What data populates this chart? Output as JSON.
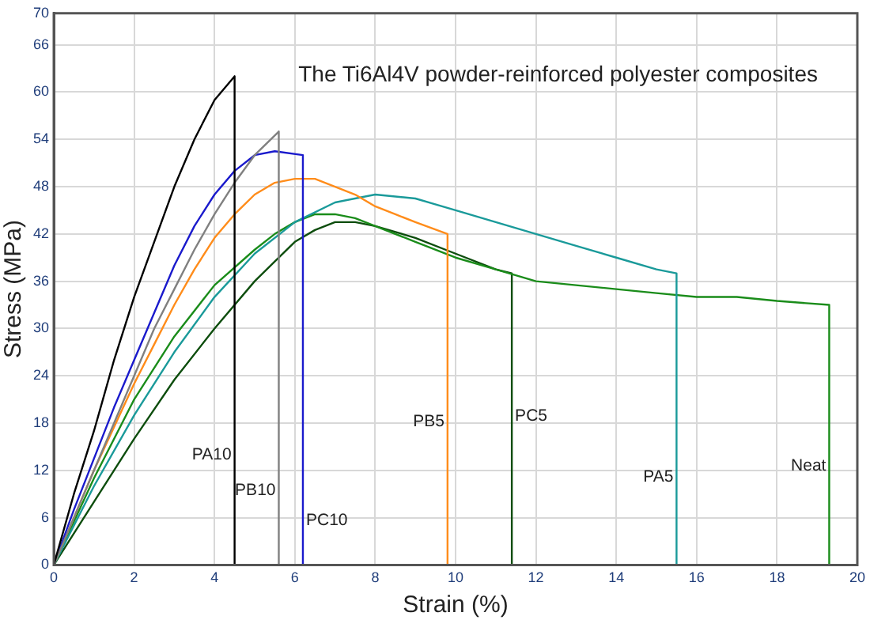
{
  "chart_data": {
    "type": "line",
    "title": "The Ti6Al4V powder-reinforced polyester composites",
    "xlabel": "Strain (%)",
    "ylabel": "Stress (MPa)",
    "xlim": [
      0,
      20
    ],
    "xticks": [
      0,
      2,
      4,
      6,
      8,
      10,
      12,
      14,
      16,
      18,
      20
    ],
    "ylim": [
      0,
      70
    ],
    "yticks": [
      0,
      6,
      12,
      18,
      24,
      30,
      36,
      42,
      48,
      54,
      60,
      66,
      70
    ],
    "grid": true,
    "marker": "none",
    "line_style": "solid",
    "series": [
      {
        "name": "PA10",
        "color": "#000000",
        "x": [
          0,
          0.5,
          1,
          1.5,
          2,
          2.5,
          3,
          3.5,
          4,
          4.5,
          4.5
        ],
        "values": [
          0,
          9,
          17,
          26,
          34,
          41,
          48,
          54,
          59,
          62,
          0
        ]
      },
      {
        "name": "PB10",
        "color": "#808080",
        "x": [
          0,
          0.5,
          1,
          1.5,
          2,
          2.5,
          3,
          3.5,
          4,
          4.5,
          5,
          5.6,
          5.6
        ],
        "values": [
          0,
          6,
          12,
          18,
          24,
          30,
          35,
          40,
          44.5,
          48.5,
          52,
          55,
          0
        ]
      },
      {
        "name": "PC10",
        "color": "#1a1acc",
        "x": [
          0,
          0.5,
          1,
          1.5,
          2,
          2.5,
          3,
          3.5,
          4,
          4.5,
          5,
          5.5,
          6.2,
          6.2
        ],
        "values": [
          0,
          7,
          13.5,
          20,
          26,
          32,
          38,
          43,
          47,
          50,
          52,
          52.5,
          52,
          0
        ]
      },
      {
        "name": "PB5",
        "color": "#ff8c1a",
        "x": [
          0,
          0.5,
          1,
          1.5,
          2,
          2.5,
          3,
          3.5,
          4,
          4.5,
          5,
          5.5,
          6,
          6.5,
          7,
          7.5,
          8,
          8.5,
          9,
          9.8,
          9.8
        ],
        "values": [
          0,
          6,
          12,
          17.5,
          23,
          28,
          33,
          37.5,
          41.5,
          44.5,
          47,
          48.5,
          49,
          49,
          48,
          47,
          45.5,
          44.5,
          43.5,
          42,
          0
        ]
      },
      {
        "name": "PA5",
        "color": "#1a9a9a",
        "x": [
          0,
          1,
          2,
          3,
          4,
          5,
          6,
          7,
          8,
          9,
          10,
          11,
          12,
          13,
          14,
          15,
          15.5,
          15.5
        ],
        "values": [
          0,
          10,
          19,
          27,
          34,
          39.5,
          43.5,
          46,
          47,
          46.5,
          45,
          43.5,
          42,
          40.5,
          39,
          37.5,
          37,
          0
        ]
      },
      {
        "name": "Neat",
        "color": "#1a8c1a",
        "x": [
          0,
          1,
          2,
          3,
          4,
          5,
          5.5,
          6,
          6.5,
          7,
          7.5,
          8,
          9,
          10,
          11,
          12,
          13,
          14,
          15,
          16,
          17,
          18,
          19.3,
          19.3
        ],
        "values": [
          0,
          11,
          21,
          29,
          35.5,
          40,
          42,
          43.5,
          44.5,
          44.5,
          44,
          43,
          41,
          39,
          37.5,
          36,
          35.5,
          35,
          34.5,
          34,
          34,
          33.5,
          33,
          0
        ]
      },
      {
        "name": "PC5",
        "color": "#0d4d0d",
        "x": [
          0,
          1,
          2,
          3,
          4,
          5,
          5.5,
          6,
          6.5,
          7,
          7.5,
          8,
          9,
          10,
          11,
          11.4,
          11.4
        ],
        "values": [
          0,
          8,
          16,
          23.5,
          30,
          36,
          38.5,
          41,
          42.5,
          43.5,
          43.5,
          43,
          41.5,
          39.5,
          37.5,
          37,
          0
        ]
      }
    ]
  }
}
